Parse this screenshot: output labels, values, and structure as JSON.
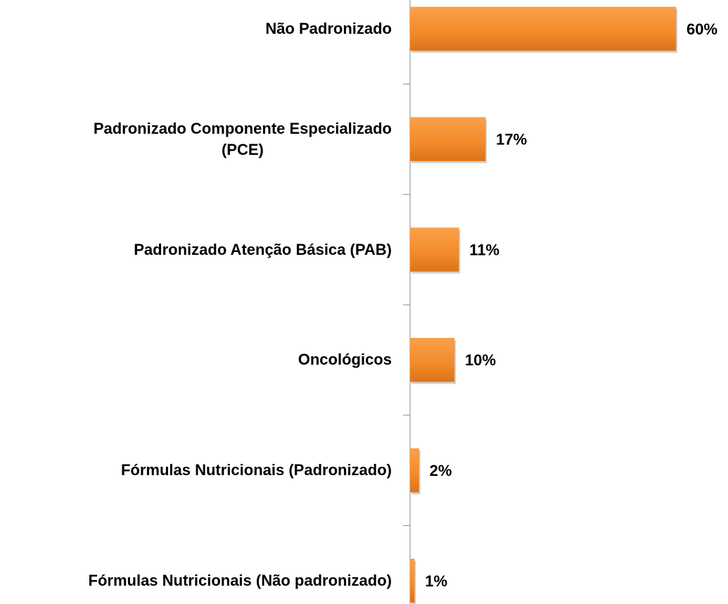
{
  "chart_data": {
    "type": "hbar",
    "categories": [
      "Não Padronizado",
      "Padronizado Componente Especializado\n(PCE)",
      "Padronizado Atenção Básica (PAB)",
      "Oncológicos",
      "Fórmulas Nutricionais (Padronizado)",
      "Fórmulas Nutricionais (Não padronizado)"
    ],
    "values": [
      60,
      17,
      11,
      10,
      2,
      1
    ],
    "value_labels": [
      "60%",
      "17%",
      "11%",
      "10%",
      "2%",
      "1%"
    ],
    "color": "#f28a2a"
  }
}
